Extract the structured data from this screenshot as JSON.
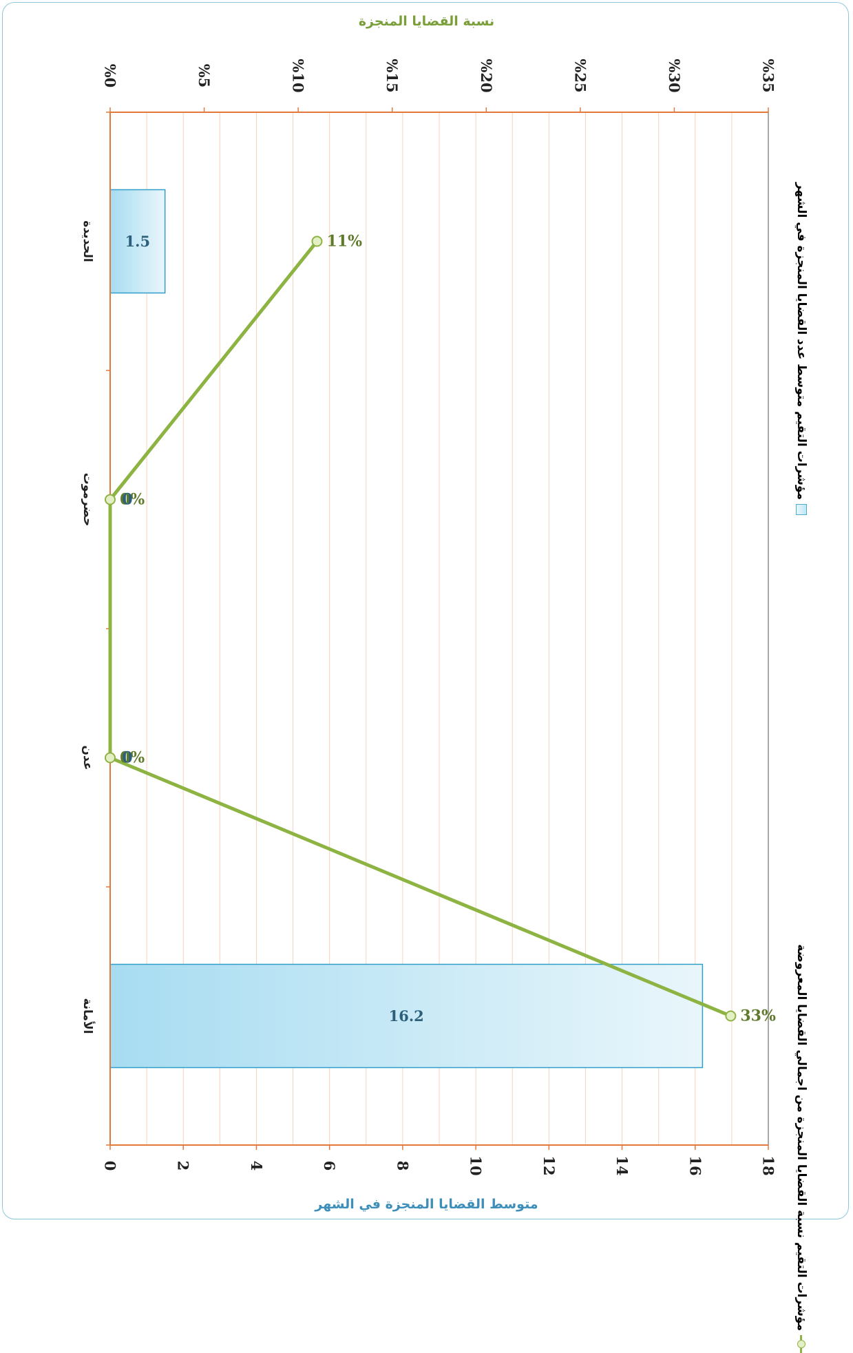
{
  "colors": {
    "bar_fill": "#b9e3f4",
    "bar_stroke": "#2f9fc9",
    "line": "#8db443",
    "marker_fill": "#e4efc6",
    "grid": "#f7d2bc",
    "axis": "#e2793b",
    "bar_axis_title": "#3d8eb9",
    "pct_axis_title": "#7a9e38",
    "bar_label": "#2b5f7a",
    "line_label": "#5f7a2b"
  },
  "chart_data": {
    "type": "bar",
    "orientation": "rotated-90",
    "categories": [
      "الأمانة",
      "عدن",
      "حضرموت",
      "الحديدة"
    ],
    "series": [
      {
        "name": "مؤشرات التقيم متوسط عدد القضايا المنجزة في الشهر",
        "type": "bar",
        "axis": "value",
        "values": [
          16.2,
          null,
          null,
          1.5
        ],
        "data_labels": [
          "16.2",
          "",
          "",
          "1.5"
        ]
      },
      {
        "name": "مؤشرات التقيم نسبة القضايا المنجزة من اجمالي القضايا المعروضة",
        "type": "line",
        "axis": "percent",
        "values": [
          33,
          0,
          0,
          11
        ],
        "data_labels": [
          "33%",
          "0%",
          "0%",
          "11%"
        ],
        "overlap_labels": [
          "",
          "0",
          "0",
          ""
        ]
      }
    ],
    "value_axis": {
      "title": "متوسط القضايا المنجزة في الشهر",
      "range": [
        0,
        18
      ],
      "ticks": [
        "0",
        "2",
        "4",
        "6",
        "8",
        "10",
        "12",
        "14",
        "16",
        "18"
      ]
    },
    "percent_axis": {
      "title": "نسبة القضايا المنجزة",
      "range": [
        0,
        35
      ],
      "ticks": [
        "%0",
        "%5",
        "%10",
        "%15",
        "%20",
        "%25",
        "%30",
        "%35"
      ]
    },
    "grid": true,
    "legend_position": "right"
  }
}
